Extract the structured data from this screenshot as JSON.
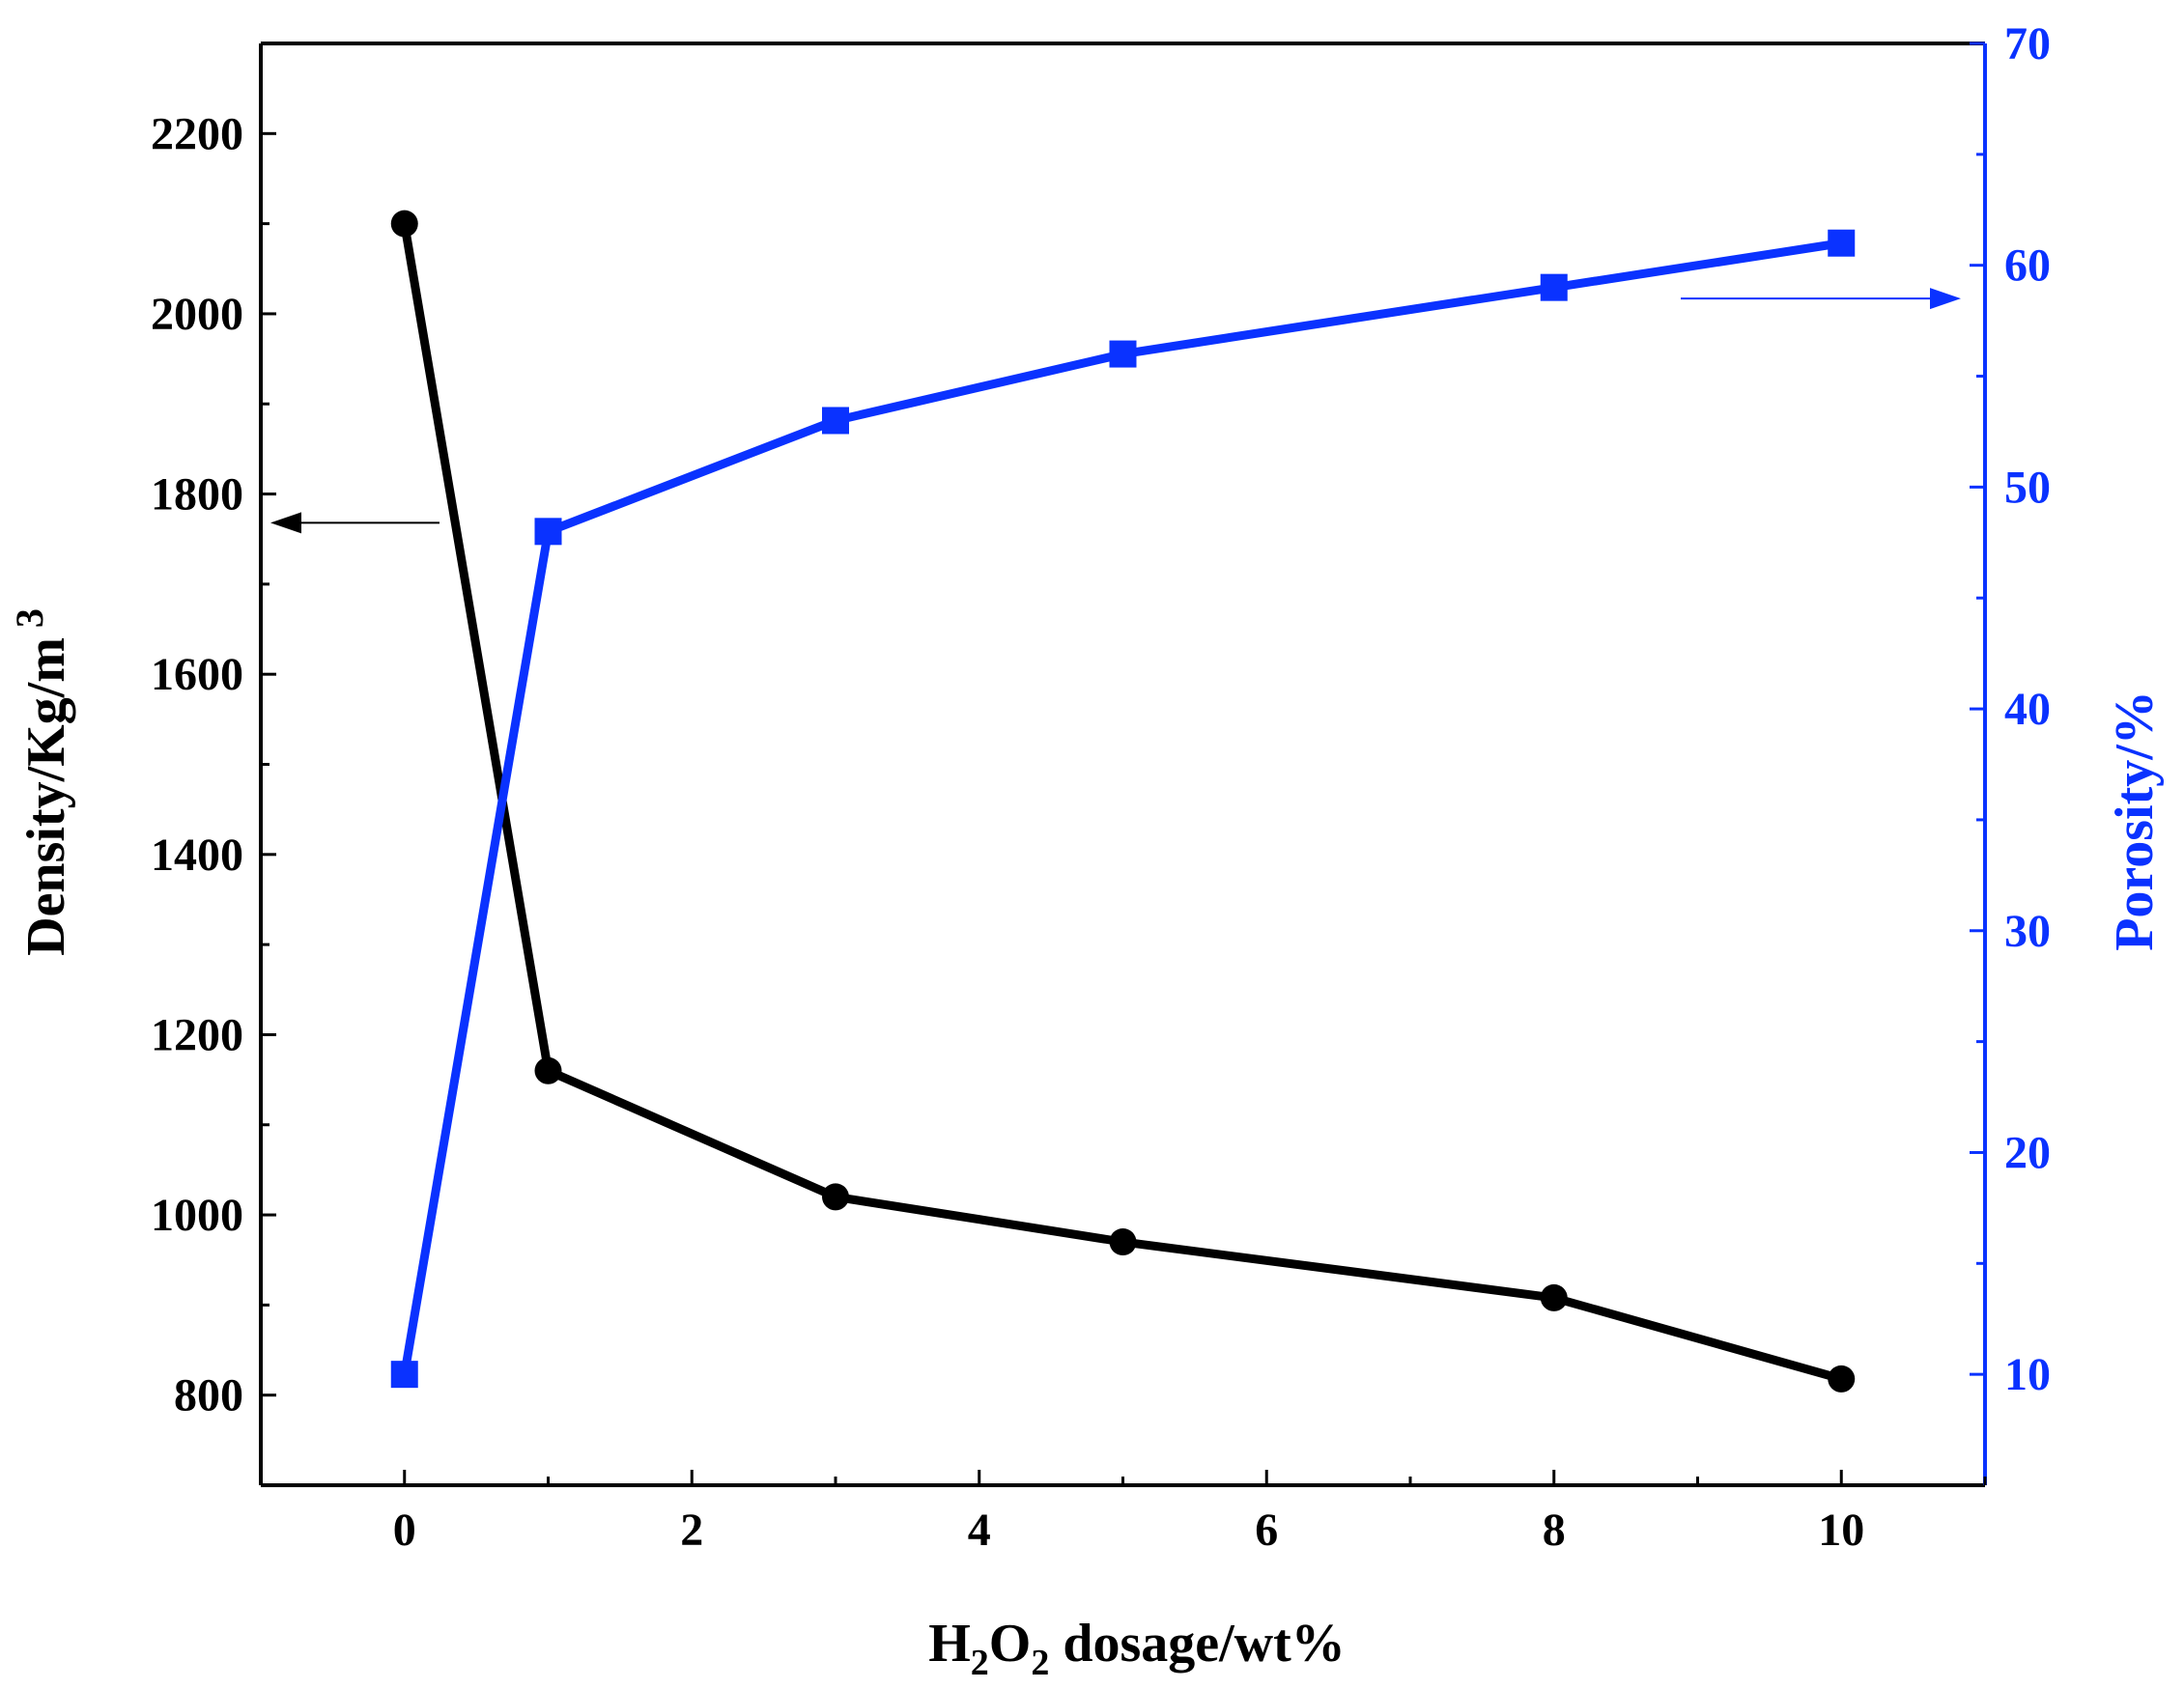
{
  "chart_data": {
    "type": "line",
    "title": "",
    "x": [
      0,
      1,
      3,
      5,
      8,
      10
    ],
    "xlim": [
      -1,
      11
    ],
    "x_ticks": [
      0,
      2,
      4,
      6,
      8,
      10
    ],
    "x_label": {
      "prefix": "H",
      "sub1": "2",
      "mid": "O",
      "sub2": "2",
      "suffix": " dosage/wt%"
    },
    "series": [
      {
        "axis": "left",
        "marker": "circle",
        "color": "#000000",
        "values": [
          2100,
          1160,
          1020,
          970,
          908,
          818
        ]
      },
      {
        "axis": "right",
        "marker": "square",
        "color": "#0a32ff",
        "values": [
          10,
          48,
          53,
          56,
          59,
          61
        ]
      }
    ],
    "y_left": {
      "label": "Density/Kg/m",
      "label_sup": "3",
      "lim": [
        700,
        2300
      ],
      "ticks": [
        800,
        1000,
        1200,
        1400,
        1600,
        1800,
        2000,
        2200
      ]
    },
    "y_right": {
      "label": "Porosity/%",
      "lim": [
        5,
        70
      ],
      "ticks": [
        10,
        20,
        30,
        40,
        50,
        60,
        70
      ],
      "color": "#0a32ff"
    },
    "annotations": [
      {
        "type": "arrow",
        "points_to": "left-axis",
        "color": "#000000"
      },
      {
        "type": "arrow",
        "points_to": "right-axis",
        "color": "#0a32ff"
      }
    ],
    "grid": false,
    "legend": "none"
  }
}
